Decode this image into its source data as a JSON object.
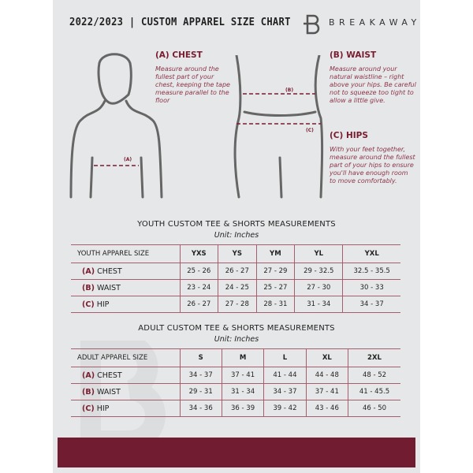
{
  "header": {
    "season": "2022/2023",
    "separator": "|",
    "title": "CUSTOM APPAREL SIZE CHART",
    "brand": "BREAKAWAY"
  },
  "colors": {
    "accent": "#721c31",
    "background": "#e6e7e8"
  },
  "guide": {
    "chest": {
      "heading": "(A) CHEST",
      "text": "Measure around the fullest part of your chest, keeping the tape measure parallel to the floor",
      "tag": "(A)"
    },
    "waist": {
      "heading": "(B) WAIST",
      "text": "Measure around your natural waistline – right above your hips. Be careful not to squeeze too tight to allow a little give.",
      "tag": "(B)"
    },
    "hips": {
      "heading": "(C) HIPS",
      "text": "With your feet together, measure around the fullest part of your hips to ensure you'll have enough room to move comfortably.",
      "tag": "(C)"
    }
  },
  "youth": {
    "title": "YOUTH CUSTOM TEE & SHORTS MEASUREMENTS",
    "unit": "Unit: Inches",
    "header": "YOUTH APPAREL SIZE",
    "sizes": [
      "YXS",
      "YS",
      "YM",
      "YL",
      "YXL"
    ],
    "rows": [
      {
        "code": "(A)",
        "label": "CHEST",
        "values": [
          "25 - 26",
          "26 - 27",
          "27 - 29",
          "29 - 32.5",
          "32.5 - 35.5"
        ]
      },
      {
        "code": "(B)",
        "label": "WAIST",
        "values": [
          "23 - 24",
          "24 - 25",
          "25 - 27",
          "27 - 30",
          "30 - 33"
        ]
      },
      {
        "code": "(C)",
        "label": "HIP",
        "values": [
          "26 - 27",
          "27 - 28",
          "28 - 31",
          "31 - 34",
          "34 - 37"
        ]
      }
    ]
  },
  "adult": {
    "title": "ADULT CUSTOM TEE & SHORTS MEASUREMENTS",
    "unit": "Unit: Inches",
    "header": "ADULT APPAREL SIZE",
    "sizes": [
      "S",
      "M",
      "L",
      "XL",
      "2XL"
    ],
    "rows": [
      {
        "code": "(A)",
        "label": "CHEST",
        "values": [
          "34 - 37",
          "37 - 41",
          "41 - 44",
          "44 - 48",
          "48 - 52"
        ]
      },
      {
        "code": "(B)",
        "label": "WAIST",
        "values": [
          "29 - 31",
          "31 - 34",
          "34 - 37",
          "37 - 41",
          "41 - 45.5"
        ]
      },
      {
        "code": "(C)",
        "label": "HIP",
        "values": [
          "34 - 36",
          "36 - 39",
          "39 - 42",
          "43 - 46",
          "46 - 50"
        ]
      }
    ]
  }
}
